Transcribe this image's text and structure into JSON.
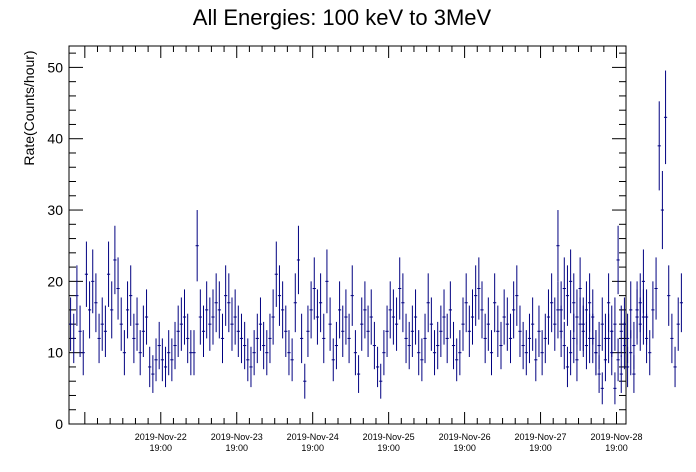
{
  "chart_data": {
    "type": "scatter",
    "title": "All Energies:  100 keV to 3MeV",
    "xlabel": "",
    "ylabel": "Rate(Counts/hour)",
    "ylim": [
      0,
      53
    ],
    "xlim": [
      "2019-11-21 14:00",
      "2019-11-28 22:00"
    ],
    "yticks": [
      0,
      10,
      20,
      30,
      40,
      50
    ],
    "xticks": [
      {
        "x": "2019-11-22 19:00",
        "date": "2019-Nov-22",
        "time": "19:00"
      },
      {
        "x": "2019-11-23 19:00",
        "date": "2019-Nov-23",
        "time": "19:00"
      },
      {
        "x": "2019-11-24 19:00",
        "date": "2019-Nov-24",
        "time": "19:00"
      },
      {
        "x": "2019-11-25 19:00",
        "date": "2019-Nov-25",
        "time": "19:00"
      },
      {
        "x": "2019-11-26 19:00",
        "date": "2019-Nov-26",
        "time": "19:00"
      },
      {
        "x": "2019-11-27 19:00",
        "date": "2019-Nov-27",
        "time": "19:00"
      },
      {
        "x": "2019-11-28 19:00",
        "date": "2019-Nov-28",
        "time": "19:00"
      }
    ],
    "grid": false,
    "marker": "cross with sqrt(N) error bars",
    "color": "#000080",
    "segments": [
      {
        "start": "2019-11-21 14:00",
        "interval_hours": 1,
        "values": [
          14,
          12,
          18,
          13,
          10,
          21,
          16,
          20,
          17,
          12,
          14,
          13,
          21,
          16,
          23,
          19,
          14,
          10,
          16,
          18,
          12,
          14,
          10,
          13,
          15,
          8,
          7,
          9,
          11,
          9,
          8,
          10,
          9,
          11,
          13,
          14,
          15,
          12,
          10,
          10,
          25,
          15,
          13,
          16,
          14,
          15,
          17,
          16,
          12,
          18,
          17,
          14,
          15,
          13,
          12,
          11,
          9,
          8,
          10,
          12,
          14,
          11,
          10,
          12,
          15,
          21,
          18,
          16,
          13,
          10,
          9,
          17,
          23,
          12,
          6,
          13,
          16,
          19,
          15,
          17,
          12,
          20,
          14,
          9,
          11,
          16,
          13,
          15,
          12,
          18,
          10,
          7,
          14,
          16,
          13,
          15,
          11,
          8,
          6,
          10,
          13,
          16,
          15,
          14,
          19,
          17,
          12,
          11,
          13,
          15,
          10,
          9,
          12,
          17,
          14,
          10,
          11,
          13,
          15,
          12,
          16,
          11,
          9,
          10,
          14,
          17,
          13,
          15,
          18,
          19,
          16,
          12,
          14,
          10,
          17,
          13,
          11,
          15,
          14,
          12,
          16,
          18,
          13,
          11,
          10,
          12,
          14,
          9,
          13,
          10,
          12,
          15,
          17,
          14,
          16,
          13,
          11,
          8,
          10,
          12,
          9,
          14,
          13,
          11,
          17,
          12,
          10,
          7,
          5,
          9,
          12,
          10,
          14,
          23,
          13,
          11,
          8,
          10,
          7,
          16,
          14,
          15,
          12,
          10,
          16,
          19,
          39,
          30,
          43,
          18,
          12,
          8,
          14,
          17
        ]
      },
      {
        "start": "2019-11-28 00:00",
        "interval_hours": 1,
        "values": [
          25,
          16,
          19,
          18,
          20,
          17,
          15,
          19,
          14,
          16,
          12,
          15,
          10,
          11,
          14,
          12,
          17,
          13,
          5,
          9,
          7,
          14,
          12,
          16,
          11,
          15,
          17,
          20,
          15
        ]
      }
    ]
  }
}
